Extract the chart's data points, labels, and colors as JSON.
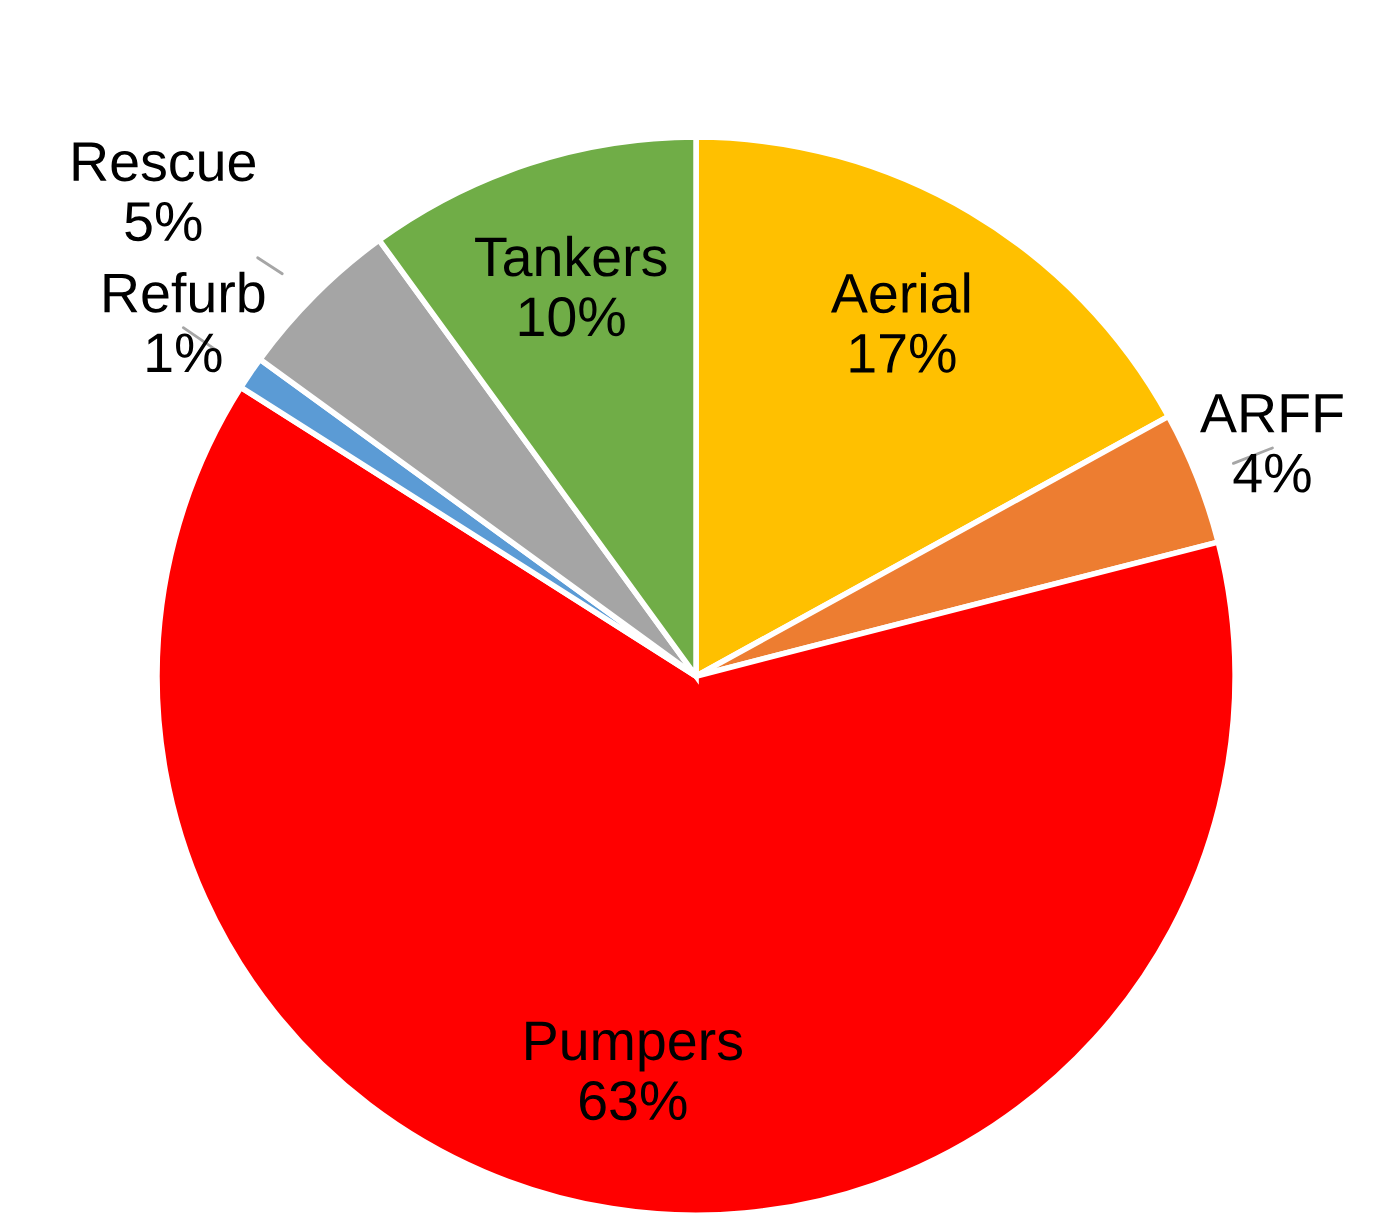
{
  "chart_data": {
    "type": "pie",
    "categories": [
      "Aerial",
      "ARFF",
      "Pumpers",
      "Refurb",
      "Rescue",
      "Tankers"
    ],
    "values": [
      17,
      4,
      63,
      1,
      5,
      10
    ],
    "colors": [
      "#ffc000",
      "#ed7d31",
      "#ff0000",
      "#5b9bd5",
      "#a5a5a5",
      "#70ad47"
    ],
    "value_labels": [
      "17%",
      "4%",
      "63%",
      "1%",
      "5%",
      "10%"
    ],
    "legend": false
  }
}
